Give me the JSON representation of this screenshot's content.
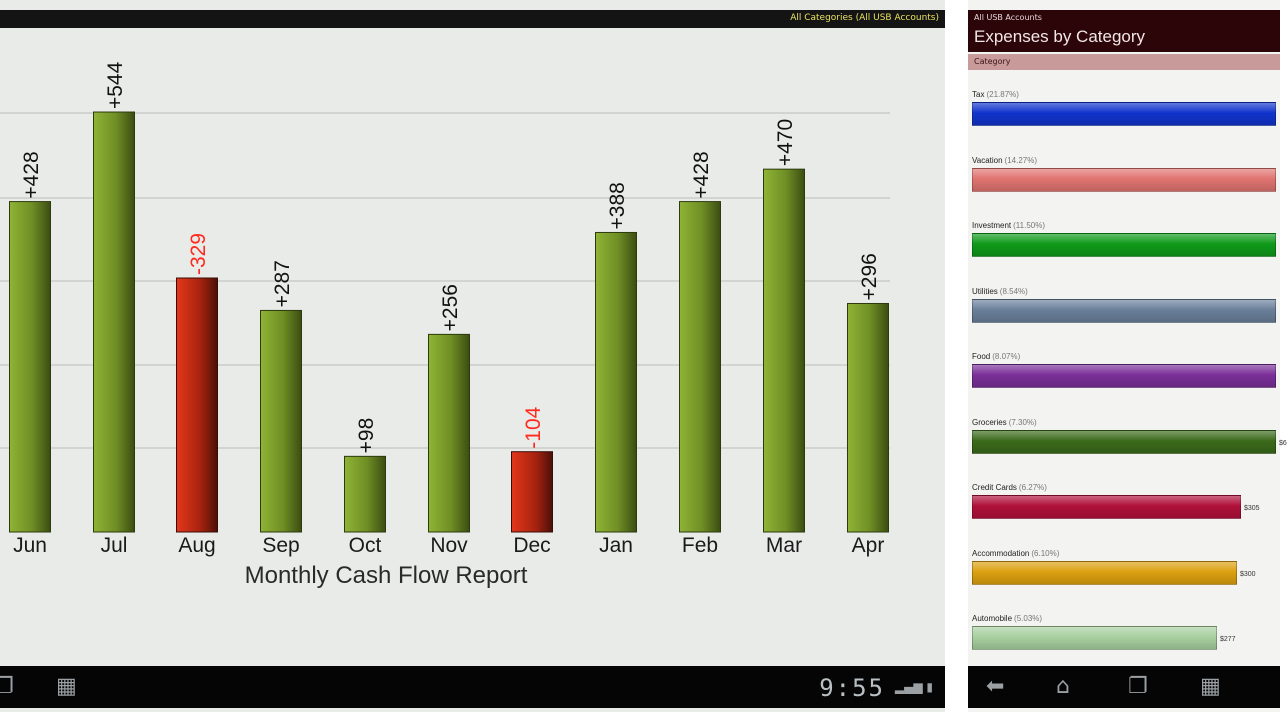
{
  "left_screen": {
    "header_label": "All Categories (All USB Accounts)",
    "clock": "9:55",
    "nav_icons": [
      "recent-apps-icon",
      "grid-icon"
    ],
    "status_icons": [
      "signal-icon",
      "battery-icon"
    ]
  },
  "chart_data": {
    "type": "bar",
    "title": "Monthly Cash Flow Report",
    "categories": [
      "Jun",
      "Jul",
      "Aug",
      "Sep",
      "Oct",
      "Nov",
      "Dec",
      "Jan",
      "Feb",
      "Mar",
      "Apr"
    ],
    "values": [
      428,
      544,
      -329,
      287,
      98,
      256,
      -104,
      388,
      428,
      470,
      296
    ],
    "data_labels": [
      "+428",
      "+544",
      "-329",
      "+287",
      "+98",
      "+256",
      "-104",
      "+388",
      "+428",
      "+470",
      "+296"
    ],
    "grid": true,
    "colors": {
      "positive": "#7d9a2c",
      "negative": "#c42a12",
      "negative_label": "#ff2a1f"
    }
  },
  "right_screen": {
    "header_sub": "All USB Accounts",
    "title": "Expenses by Category",
    "column_header": "Category",
    "categories": [
      {
        "name": "Tax",
        "pct": "(21.87%)",
        "fraction": 1.0,
        "color": "#1133cc",
        "amount": ""
      },
      {
        "name": "Vacation",
        "pct": "(14.27%)",
        "fraction": 1.0,
        "color": "#e07470",
        "amount": ""
      },
      {
        "name": "Investment",
        "pct": "(11.50%)",
        "fraction": 1.0,
        "color": "#0f9a1a",
        "amount": ""
      },
      {
        "name": "Utilities",
        "pct": "(8.54%)",
        "fraction": 1.0,
        "color": "#6a7f9a",
        "amount": ""
      },
      {
        "name": "Food",
        "pct": "(8.07%)",
        "fraction": 1.0,
        "color": "#7a2f98",
        "amount": ""
      },
      {
        "name": "Groceries",
        "pct": "(7.30%)",
        "fraction": 0.96,
        "color": "#3a6a1a",
        "amount": "$6"
      },
      {
        "name": "Credit Cards",
        "pct": "(6.27%)",
        "fraction": 0.79,
        "color": "#b0103a",
        "amount": "$305"
      },
      {
        "name": "Accommodation",
        "pct": "(6.10%)",
        "fraction": 0.78,
        "color": "#dca010",
        "amount": "$300"
      },
      {
        "name": "Automobile",
        "pct": "(5.03%)",
        "fraction": 0.72,
        "color": "#a8d0a0",
        "amount": "$277"
      }
    ],
    "nav_icons": [
      "back-icon",
      "home-icon",
      "recent-apps-icon",
      "grid-icon"
    ]
  }
}
